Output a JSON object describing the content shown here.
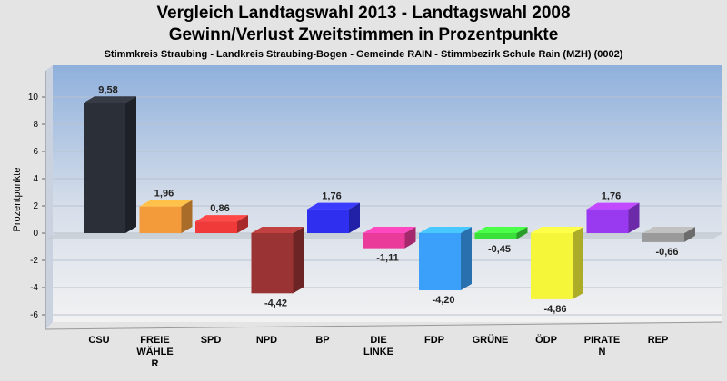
{
  "title_line1": "Vergleich Landtagswahl 2013 - Landtagswahl 2008",
  "title_line2": "Gewinn/Verlust Zweitstimmen in Prozentpunkte",
  "subtitle": "Stimmkreis Straubing - Landkreis Straubing-Bogen - Gemeinde RAIN - Stimmbezirk Schule Rain (MZH) (0002)",
  "chart_data": {
    "type": "bar",
    "title": "Vergleich Landtagswahl 2013 - Landtagswahl 2008",
    "subtitle": "Gewinn/Verlust Zweitstimmen in Prozentpunkte",
    "xlabel": "",
    "ylabel": "Prozentpunkte",
    "ylim": [
      -6.8,
      11.2
    ],
    "yticks": [
      10,
      8,
      6,
      4,
      2,
      0,
      -2,
      -4,
      -6
    ],
    "grid": true,
    "categories": [
      {
        "label": [
          "CSU"
        ],
        "value": 9.58,
        "value_label": "9,58",
        "color": "#2b2f38"
      },
      {
        "label": [
          "FREIE",
          "WÄHLE",
          "R"
        ],
        "value": 1.96,
        "value_label": "1,96",
        "color": "#f39a3a"
      },
      {
        "label": [
          "SPD"
        ],
        "value": 0.86,
        "value_label": "0,86",
        "color": "#f03a3a"
      },
      {
        "label": [
          "NPD"
        ],
        "value": -4.42,
        "value_label": "-4,42",
        "color": "#9a3434"
      },
      {
        "label": [
          "BP"
        ],
        "value": 1.76,
        "value_label": "1,76",
        "color": "#2f2ff0"
      },
      {
        "label": [
          "DIE",
          "LINKE"
        ],
        "value": -1.11,
        "value_label": "-1,11",
        "color": "#ea3a9a"
      },
      {
        "label": [
          "FDP"
        ],
        "value": -4.2,
        "value_label": "-4,20",
        "color": "#3aa0fa"
      },
      {
        "label": [
          "GRÜNE"
        ],
        "value": -0.45,
        "value_label": "-0,45",
        "color": "#3ae03a"
      },
      {
        "label": [
          "ÖDP"
        ],
        "value": -4.86,
        "value_label": "-4,86",
        "color": "#f5f53a"
      },
      {
        "label": [
          "PIRATE",
          "N"
        ],
        "value": 1.76,
        "value_label": "1,76",
        "color": "#9a3af0"
      },
      {
        "label": [
          "REP"
        ],
        "value": -0.66,
        "value_label": "-0,66",
        "color": "#9a9a9a"
      }
    ]
  }
}
